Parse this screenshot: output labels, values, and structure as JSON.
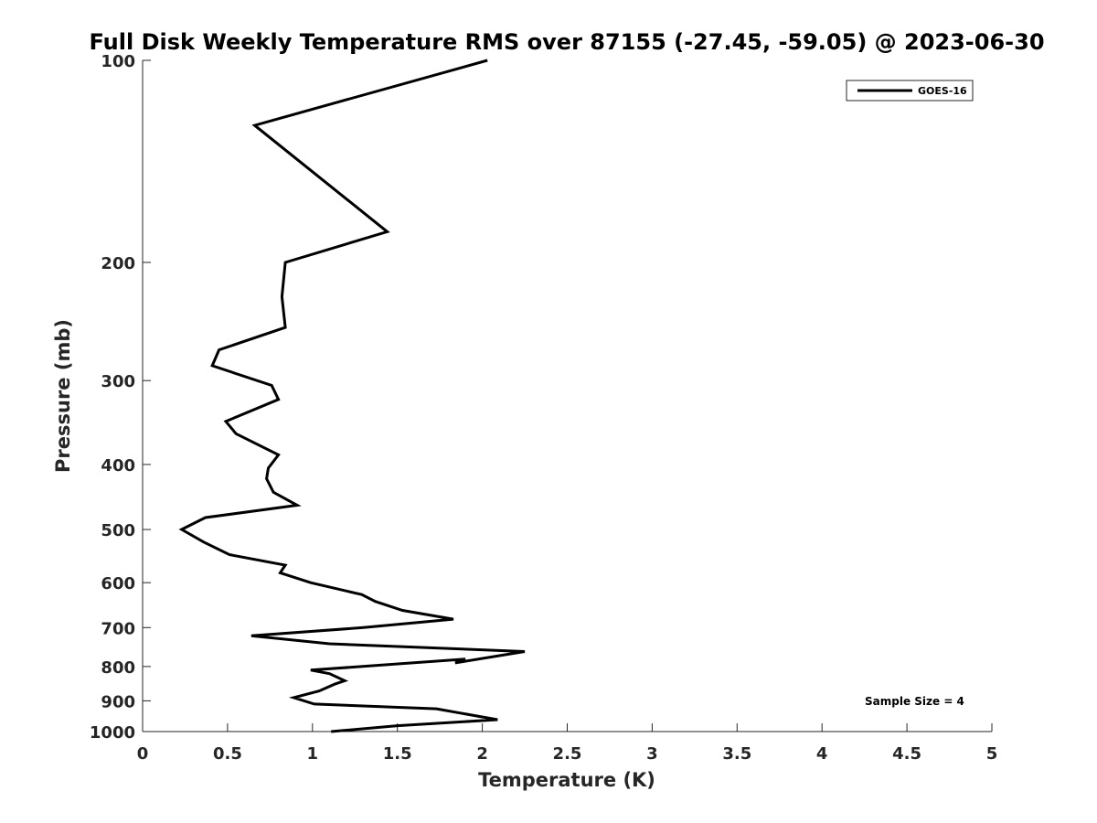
{
  "chart_data": {
    "type": "line",
    "title": "Full Disk Weekly Temperature RMS over 87155 (-27.45, -59.05) @ 2023-06-30",
    "xlabel": "Temperature (K)",
    "ylabel": "Pressure (mb)",
    "xlim": [
      0,
      5
    ],
    "ylim": [
      100,
      1000
    ],
    "y_scale": "log",
    "y_reversed": true,
    "x_ticks": [
      0,
      0.5,
      1,
      1.5,
      2,
      2.5,
      3,
      3.5,
      4,
      4.5,
      5
    ],
    "x_tick_labels": [
      "0",
      "0.5",
      "1",
      "1.5",
      "2",
      "2.5",
      "3",
      "3.5",
      "4",
      "4.5",
      "5"
    ],
    "y_ticks": [
      100,
      200,
      300,
      400,
      500,
      600,
      700,
      800,
      900,
      1000
    ],
    "y_tick_labels": [
      "100",
      "200",
      "300",
      "400",
      "500",
      "600",
      "700",
      "800",
      "900",
      "1000"
    ],
    "grid": false,
    "legend": {
      "position": "top-right",
      "entries": [
        "GOES-16"
      ]
    },
    "annotation": "Sample Size = 4",
    "line_color": "#000000",
    "series": [
      {
        "name": "GOES-16",
        "points": [
          [
            2.03,
            100
          ],
          [
            0.66,
            125
          ],
          [
            1.44,
            180
          ],
          [
            0.84,
            200
          ],
          [
            0.82,
            225
          ],
          [
            0.84,
            250
          ],
          [
            0.45,
            270
          ],
          [
            0.41,
            285
          ],
          [
            0.76,
            305
          ],
          [
            0.8,
            320
          ],
          [
            0.49,
            345
          ],
          [
            0.55,
            360
          ],
          [
            0.8,
            387
          ],
          [
            0.74,
            405
          ],
          [
            0.73,
            420
          ],
          [
            0.77,
            440
          ],
          [
            0.91,
            460
          ],
          [
            0.37,
            480
          ],
          [
            0.23,
            500
          ],
          [
            0.36,
            522
          ],
          [
            0.51,
            545
          ],
          [
            0.84,
            565
          ],
          [
            0.81,
            580
          ],
          [
            0.99,
            600
          ],
          [
            1.29,
            625
          ],
          [
            1.37,
            640
          ],
          [
            1.53,
            660
          ],
          [
            1.83,
            680
          ],
          [
            1.3,
            700
          ],
          [
            0.64,
            720
          ],
          [
            1.1,
            740
          ],
          [
            2.25,
            760
          ],
          [
            1.84,
            790
          ],
          [
            1.9,
            780
          ],
          [
            0.99,
            810
          ],
          [
            1.1,
            820
          ],
          [
            1.19,
            840
          ],
          [
            1.13,
            850
          ],
          [
            1.04,
            870
          ],
          [
            0.89,
            890
          ],
          [
            1.01,
            910
          ],
          [
            1.73,
            925
          ],
          [
            2.09,
            960
          ],
          [
            1.5,
            980
          ],
          [
            1.11,
            1000
          ]
        ]
      }
    ]
  }
}
